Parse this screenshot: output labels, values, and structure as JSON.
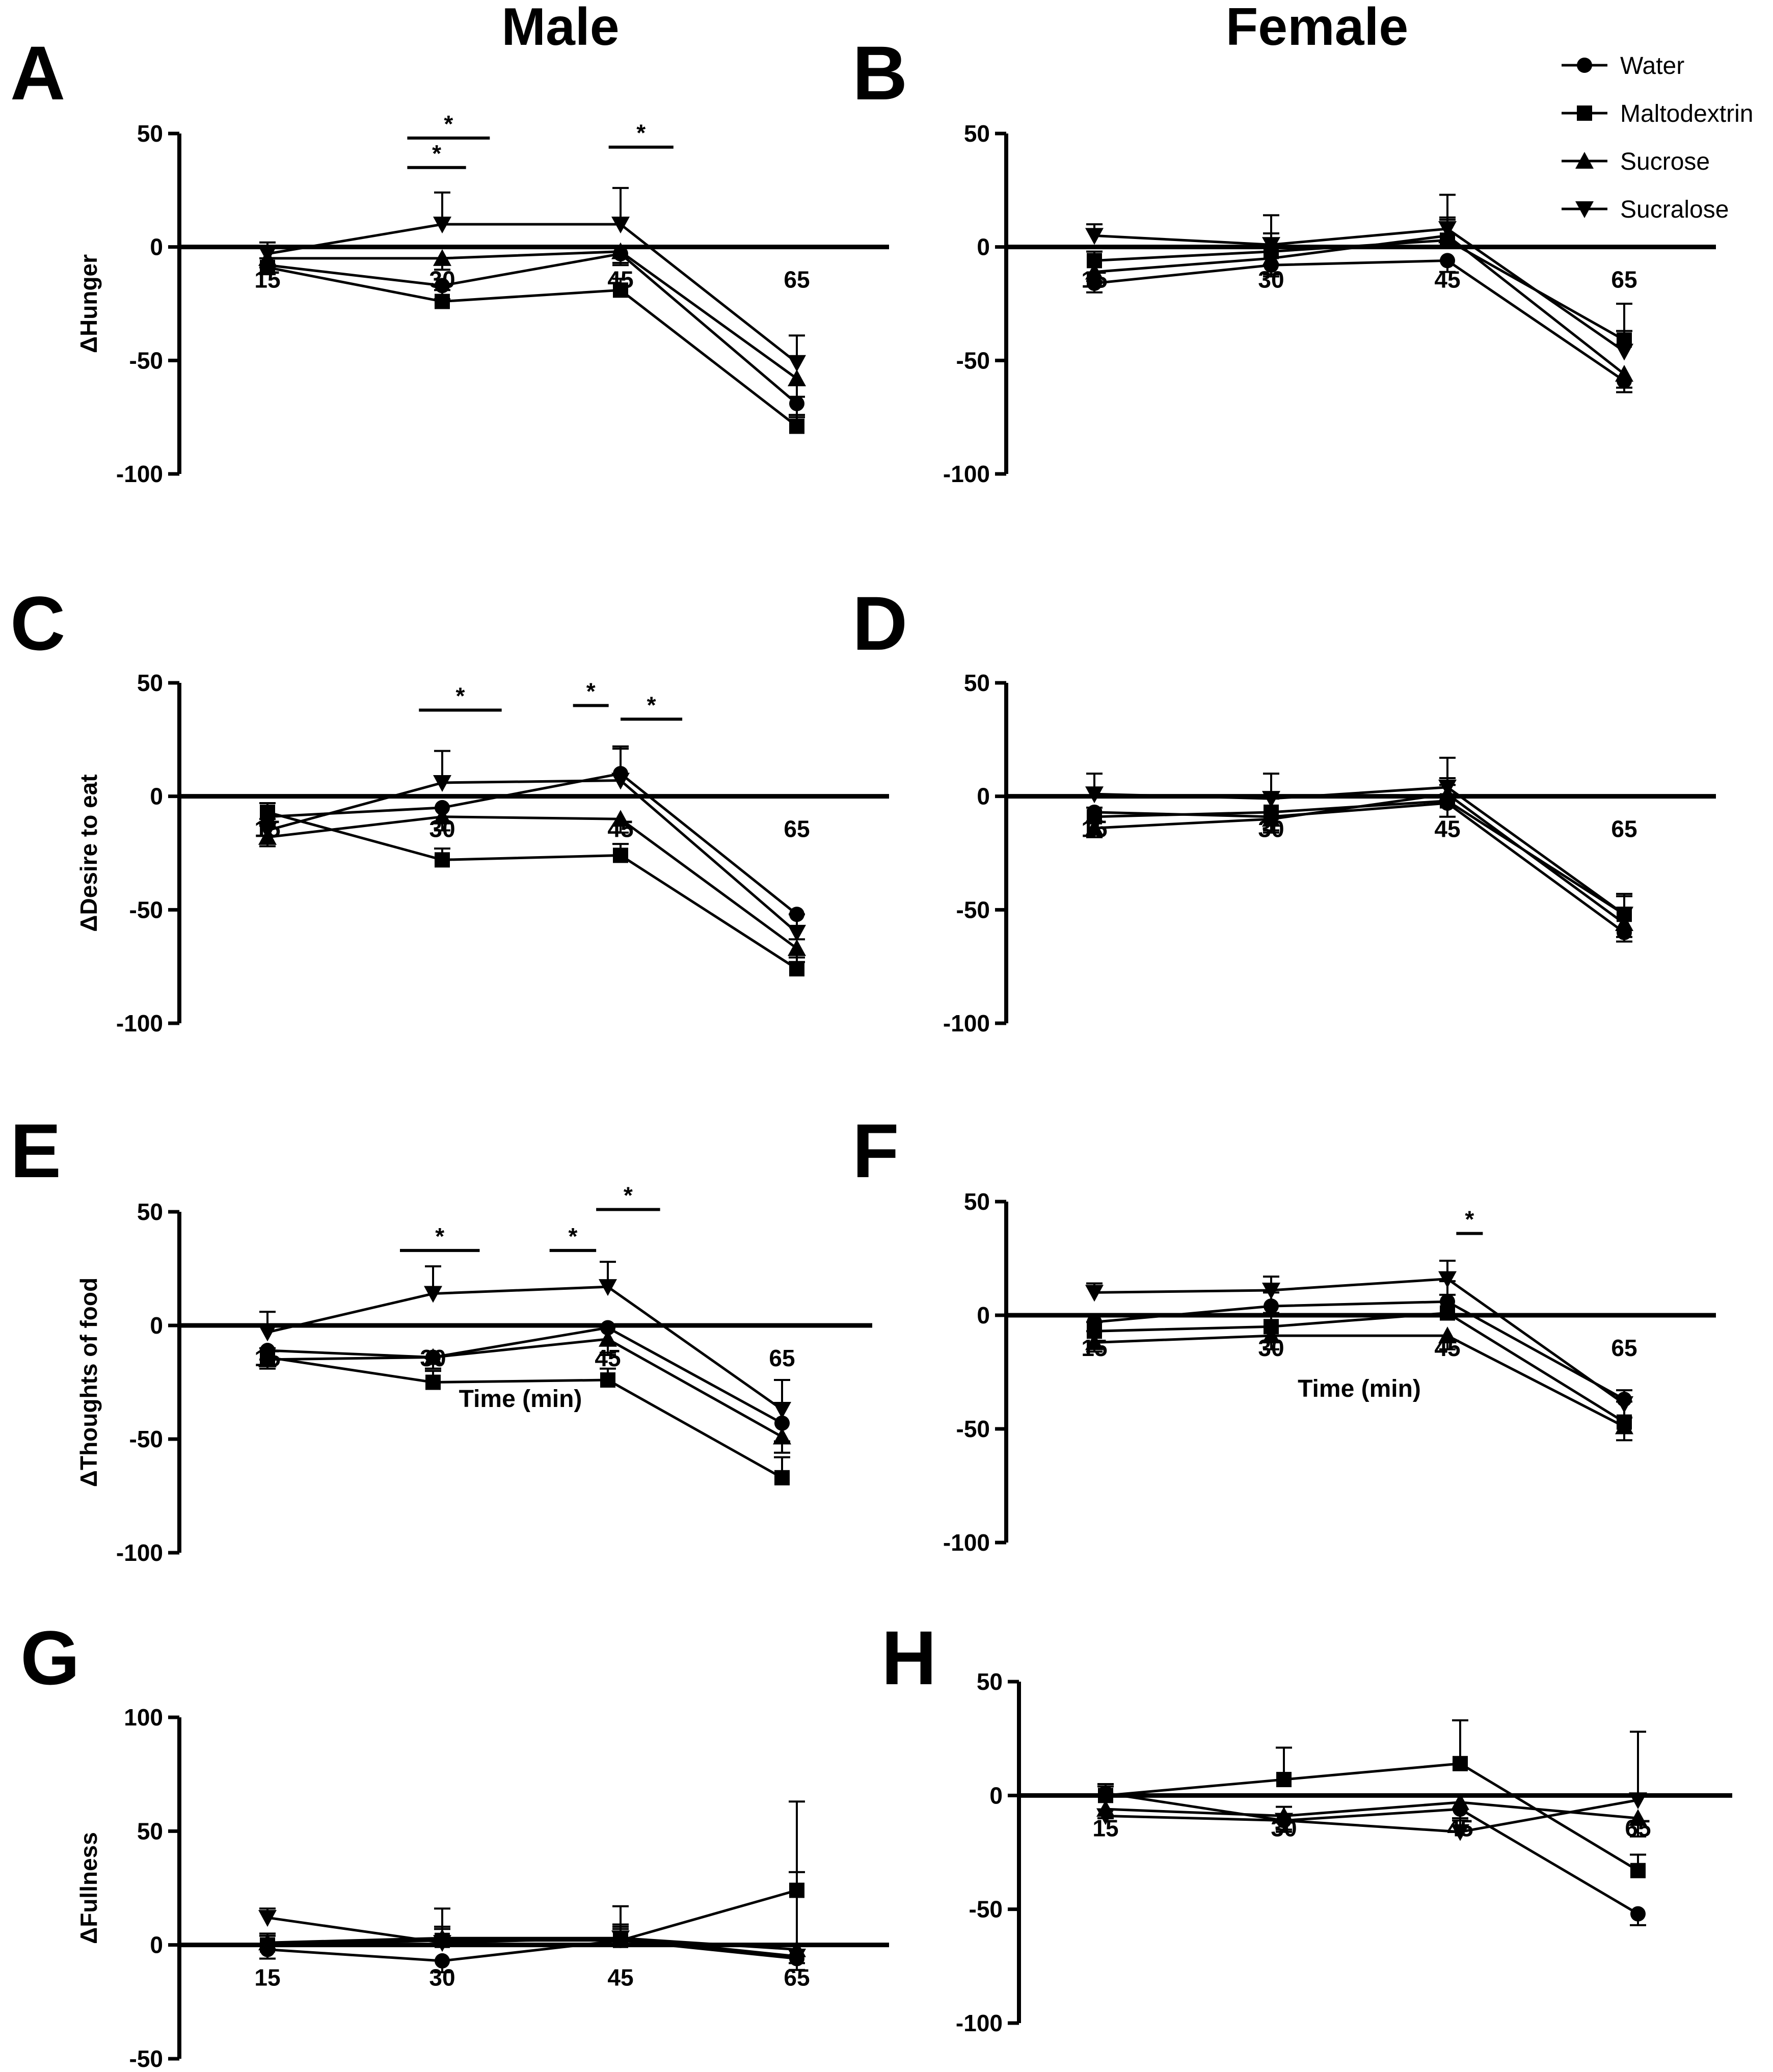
{
  "column_titles": {
    "male": "Male",
    "female": "Female"
  },
  "legend": [
    {
      "name": "Water",
      "marker": "circle"
    },
    {
      "name": "Maltodextrin",
      "marker": "square"
    },
    {
      "name": "Sucrose",
      "marker": "triangle-up"
    },
    {
      "name": "Sucralose",
      "marker": "triangle-down"
    }
  ],
  "chart_data": [
    {
      "panel": "A",
      "type": "line",
      "group": "Male",
      "ylabel": "ΔHunger",
      "xlabel": "",
      "x": [
        15,
        30,
        45,
        65
      ],
      "ylim": [
        -100,
        50
      ],
      "yticks": [
        50,
        0,
        -50,
        -100
      ],
      "series": [
        {
          "name": "Water",
          "values": [
            -8,
            -17,
            -3,
            -69
          ],
          "err": [
            4,
            6,
            5,
            6
          ]
        },
        {
          "name": "Maltodextrin",
          "values": [
            -9,
            -24,
            -19,
            -79
          ],
          "err": [
            4,
            5,
            5,
            5
          ]
        },
        {
          "name": "Sucrose",
          "values": [
            -5,
            -5,
            -2,
            -58
          ],
          "err": [
            4,
            5,
            5,
            8
          ]
        },
        {
          "name": "Sucralose",
          "values": [
            -3,
            10,
            10,
            -51
          ],
          "err": [
            5,
            14,
            16,
            12
          ]
        }
      ],
      "significance": [
        {
          "label": "*",
          "from": 27,
          "to": 34,
          "y": 48
        },
        {
          "label": "*",
          "from": 27,
          "to": 32,
          "y": 35
        },
        {
          "label": "*",
          "from": 44,
          "to": 51,
          "y": 44
        }
      ]
    },
    {
      "panel": "B",
      "type": "line",
      "group": "Female",
      "ylabel": "",
      "xlabel": "",
      "x": [
        15,
        30,
        45,
        65
      ],
      "ylim": [
        -100,
        50
      ],
      "yticks": [
        50,
        0,
        -50,
        -100
      ],
      "series": [
        {
          "name": "Water",
          "values": [
            -16,
            -8,
            -6,
            -59
          ],
          "err": [
            4,
            5,
            5,
            5
          ]
        },
        {
          "name": "Maltodextrin",
          "values": [
            -6,
            -2,
            3,
            -41
          ],
          "err": [
            4,
            8,
            9,
            16
          ]
        },
        {
          "name": "Sucrose",
          "values": [
            -11,
            -5,
            5,
            -56
          ],
          "err": [
            4,
            7,
            8,
            6
          ]
        },
        {
          "name": "Sucralose",
          "values": [
            5,
            1,
            8,
            -46
          ],
          "err": [
            5,
            13,
            15,
            9
          ]
        }
      ],
      "significance": []
    },
    {
      "panel": "C",
      "type": "line",
      "group": "Male",
      "ylabel": "ΔDesire to eat",
      "xlabel": "",
      "x": [
        15,
        30,
        45,
        65
      ],
      "ylim": [
        -100,
        50
      ],
      "yticks": [
        50,
        0,
        -50,
        -100
      ],
      "series": [
        {
          "name": "Water",
          "values": [
            -9,
            -5,
            10,
            -52
          ],
          "err": [
            4,
            6,
            12,
            11
          ]
        },
        {
          "name": "Maltodextrin",
          "values": [
            -7,
            -28,
            -26,
            -76
          ],
          "err": [
            4,
            5,
            5,
            5
          ]
        },
        {
          "name": "Sucrose",
          "values": [
            -18,
            -9,
            -10,
            -67
          ],
          "err": [
            4,
            6,
            6,
            6
          ]
        },
        {
          "name": "Sucralose",
          "values": [
            -15,
            6,
            7,
            -60
          ],
          "err": [
            5,
            14,
            14,
            8
          ]
        }
      ],
      "significance": [
        {
          "label": "*",
          "from": 28,
          "to": 35,
          "y": 38
        },
        {
          "label": "*",
          "from": 41,
          "to": 44,
          "y": 40
        },
        {
          "label": "*",
          "from": 45,
          "to": 52,
          "y": 34
        }
      ]
    },
    {
      "panel": "D",
      "type": "line",
      "group": "Female",
      "ylabel": "",
      "xlabel": "",
      "x": [
        15,
        30,
        45,
        65
      ],
      "ylim": [
        -100,
        50
      ],
      "yticks": [
        50,
        0,
        -50,
        -100
      ],
      "series": [
        {
          "name": "Water",
          "values": [
            -7,
            -9,
            -3,
            -60
          ],
          "err": [
            4,
            6,
            6,
            4
          ]
        },
        {
          "name": "Maltodextrin",
          "values": [
            -9,
            -7,
            -2,
            -52
          ],
          "err": [
            4,
            6,
            7,
            8
          ]
        },
        {
          "name": "Sucrose",
          "values": [
            -14,
            -10,
            1,
            -56
          ],
          "err": [
            4,
            6,
            7,
            6
          ]
        },
        {
          "name": "Sucralose",
          "values": [
            1,
            -1,
            4,
            -52
          ],
          "err": [
            9,
            11,
            13,
            9
          ]
        }
      ],
      "significance": []
    },
    {
      "panel": "E",
      "type": "line",
      "group": "Male",
      "ylabel": "ΔThoughts of food",
      "xlabel": "Time (min)",
      "x": [
        15,
        30,
        45,
        65
      ],
      "ylim": [
        -100,
        50
      ],
      "yticks": [
        50,
        0,
        -50,
        -100
      ],
      "series": [
        {
          "name": "Water",
          "values": [
            -11,
            -14,
            -1,
            -43
          ],
          "err": [
            4,
            5,
            12,
            8
          ]
        },
        {
          "name": "Maltodextrin",
          "values": [
            -14,
            -25,
            -24,
            -67
          ],
          "err": [
            4,
            5,
            5,
            9
          ]
        },
        {
          "name": "Sucrose",
          "values": [
            -15,
            -14,
            -6,
            -49
          ],
          "err": [
            4,
            5,
            6,
            7
          ]
        },
        {
          "name": "Sucralose",
          "values": [
            -3,
            14,
            17,
            -37
          ],
          "err": [
            9,
            12,
            11,
            13
          ]
        }
      ],
      "significance": [
        {
          "label": "*",
          "from": 27,
          "to": 34,
          "y": 33
        },
        {
          "label": "*",
          "from": 40,
          "to": 44,
          "y": 33
        },
        {
          "label": "*",
          "from": 44,
          "to": 51,
          "y": 51
        }
      ]
    },
    {
      "panel": "F",
      "type": "line",
      "group": "Female",
      "ylabel": "",
      "xlabel": "Time (min)",
      "x": [
        15,
        30,
        45,
        65
      ],
      "ylim": [
        -100,
        50
      ],
      "yticks": [
        50,
        0,
        -50,
        -100
      ],
      "series": [
        {
          "name": "Water",
          "values": [
            -3,
            4,
            6,
            -37
          ],
          "err": [
            4,
            6,
            9,
            8
          ]
        },
        {
          "name": "Maltodextrin",
          "values": [
            -7,
            -5,
            1,
            -47
          ],
          "err": [
            4,
            6,
            8,
            9
          ]
        },
        {
          "name": "Sucrose",
          "values": [
            -12,
            -9,
            -9,
            -49
          ],
          "err": [
            4,
            6,
            6,
            6
          ]
        },
        {
          "name": "Sucralose",
          "values": [
            10,
            11,
            16,
            -39
          ],
          "err": [
            4,
            6,
            8,
            6
          ]
        }
      ],
      "significance": [
        {
          "label": "*",
          "from": 46,
          "to": 49,
          "y": 36
        }
      ]
    },
    {
      "panel": "G",
      "type": "line",
      "group": "Male",
      "ylabel": "ΔFullness",
      "xlabel": "",
      "x": [
        15,
        30,
        45,
        65
      ],
      "ylim": [
        -50,
        100
      ],
      "yticks": [
        100,
        50,
        0,
        -50
      ],
      "series": [
        {
          "name": "Water",
          "values": [
            -2,
            -7,
            2,
            -6
          ],
          "err": [
            4,
            5,
            5,
            5
          ]
        },
        {
          "name": "Maltodextrin",
          "values": [
            0,
            2,
            2,
            24
          ],
          "err": [
            4,
            5,
            6,
            8
          ]
        },
        {
          "name": "Sucrose",
          "values": [
            1,
            3,
            3,
            -2
          ],
          "err": [
            4,
            5,
            6,
            6
          ]
        },
        {
          "name": "Sucralose",
          "values": [
            12,
            1,
            3,
            -5
          ],
          "err": [
            4,
            15,
            14,
            68
          ]
        }
      ],
      "significance": []
    },
    {
      "panel": "H",
      "type": "line",
      "group": "Female",
      "ylabel": "",
      "xlabel": "",
      "x": [
        15,
        30,
        45,
        65
      ],
      "ylim": [
        -100,
        50
      ],
      "yticks": [
        50,
        0,
        -50,
        -100
      ],
      "series": [
        {
          "name": "Water",
          "values": [
            1,
            -11,
            -6,
            -52
          ],
          "err": [
            4,
            5,
            5,
            5
          ]
        },
        {
          "name": "Maltodextrin",
          "values": [
            0,
            7,
            14,
            -33
          ],
          "err": [
            4,
            14,
            19,
            7
          ]
        },
        {
          "name": "Sucrose",
          "values": [
            -6,
            -9,
            -3,
            -10
          ],
          "err": [
            4,
            6,
            8,
            8
          ]
        },
        {
          "name": "Sucralose",
          "values": [
            -9,
            -11,
            -16,
            -2
          ],
          "err": [
            13,
            6,
            6,
            30
          ]
        }
      ],
      "significance": []
    }
  ]
}
